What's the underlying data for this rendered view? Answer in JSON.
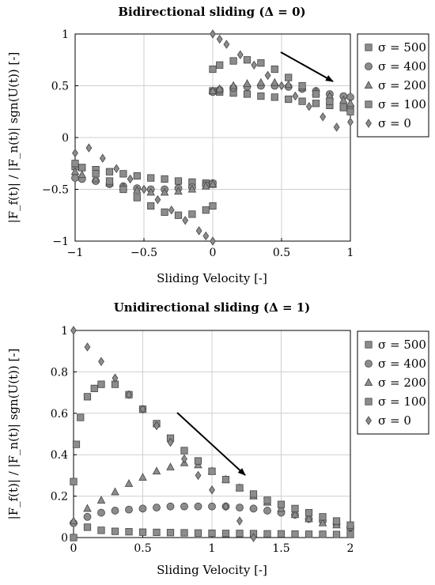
{
  "chart_data": [
    {
      "type": "scatter",
      "title": "Bidirectional sliding (Δ = 0)",
      "xlabel": "Sliding Velocity [-]",
      "ylabel": "|F_f(t)| / |F_n(t)| sgn(U(t)) [-]",
      "xlim": [
        -1,
        1
      ],
      "ylim": [
        -1,
        1
      ],
      "xticks": [
        "−1",
        "−0.5",
        "0",
        "0.5",
        "1"
      ],
      "yticks": [
        "−1",
        "−0.5",
        "0",
        "0.5",
        "1"
      ],
      "grid": true,
      "legend_position": "right",
      "annotation": "arrow pointing toward increasing σ",
      "series": [
        {
          "name": "σ = 500",
          "marker": "square",
          "x": [
            0,
            0.05,
            0.15,
            0.25,
            0.35,
            0.45,
            0.55,
            0.65,
            0.75,
            0.85,
            0.95,
            1.0
          ],
          "y": [
            0.45,
            0.44,
            0.43,
            0.42,
            0.4,
            0.39,
            0.37,
            0.35,
            0.33,
            0.31,
            0.29,
            0.28
          ]
        },
        {
          "name": "σ = 400",
          "marker": "circle",
          "x": [
            0,
            0.05,
            0.15,
            0.25,
            0.35,
            0.45,
            0.55,
            0.65,
            0.75,
            0.85,
            0.95,
            1.0
          ],
          "y": [
            0.44,
            0.46,
            0.48,
            0.49,
            0.5,
            0.5,
            0.49,
            0.47,
            0.45,
            0.42,
            0.4,
            0.39
          ]
        },
        {
          "name": "σ = 200",
          "marker": "triangle",
          "x": [
            0,
            0.05,
            0.15,
            0.25,
            0.35,
            0.45,
            0.55,
            0.65,
            0.75,
            0.85,
            0.95,
            1.0
          ],
          "y": [
            0.45,
            0.47,
            0.5,
            0.52,
            0.53,
            0.53,
            0.51,
            0.48,
            0.44,
            0.4,
            0.36,
            0.33
          ]
        },
        {
          "name": "σ = 100",
          "marker": "square",
          "x": [
            0,
            0.05,
            0.15,
            0.25,
            0.35,
            0.45,
            0.55,
            0.65,
            0.75,
            0.85,
            0.95,
            1.0
          ],
          "y": [
            0.66,
            0.7,
            0.74,
            0.75,
            0.72,
            0.66,
            0.58,
            0.5,
            0.42,
            0.35,
            0.29,
            0.25
          ]
        },
        {
          "name": "σ = 0",
          "marker": "diamond",
          "x": [
            0,
            0.05,
            0.1,
            0.2,
            0.3,
            0.4,
            0.5,
            0.6,
            0.7,
            0.8,
            0.9,
            1.0
          ],
          "y": [
            1.0,
            0.95,
            0.9,
            0.8,
            0.7,
            0.6,
            0.5,
            0.4,
            0.3,
            0.2,
            0.1,
            0.15
          ]
        }
      ]
    },
    {
      "type": "scatter",
      "title": "Unidirectional sliding (Δ = 1)",
      "xlabel": "Sliding Velocity [-]",
      "ylabel": "|F_f(t)| / |F_n(t)| sgn(U(t)) [-]",
      "xlim": [
        0,
        2
      ],
      "ylim": [
        0,
        1
      ],
      "xticks": [
        "0",
        "0.5",
        "1",
        "1.5",
        "2"
      ],
      "yticks": [
        "0",
        "0.2",
        "0.4",
        "0.6",
        "0.8",
        "1"
      ],
      "grid": true,
      "legend_position": "right",
      "annotation": "arrow pointing toward increasing σ",
      "series": [
        {
          "name": "σ = 500",
          "marker": "square",
          "x": [
            0,
            0.1,
            0.2,
            0.3,
            0.4,
            0.5,
            0.6,
            0.7,
            0.8,
            0.9,
            1.0,
            1.1,
            1.2,
            1.3,
            1.4,
            1.5,
            1.6,
            1.7,
            1.8,
            1.9,
            2.0
          ],
          "y": [
            0.0,
            0.05,
            0.035,
            0.03,
            0.028,
            0.026,
            0.025,
            0.024,
            0.023,
            0.022,
            0.021,
            0.02,
            0.02,
            0.019,
            0.018,
            0.018,
            0.017,
            0.016,
            0.016,
            0.015,
            0.015
          ]
        },
        {
          "name": "σ = 400",
          "marker": "circle",
          "x": [
            0,
            0.1,
            0.2,
            0.3,
            0.4,
            0.5,
            0.6,
            0.7,
            0.8,
            0.9,
            1.0,
            1.1,
            1.2,
            1.3,
            1.4,
            1.5,
            1.6,
            1.7,
            1.8,
            1.9,
            2.0
          ],
          "y": [
            0.07,
            0.1,
            0.12,
            0.13,
            0.135,
            0.14,
            0.145,
            0.15,
            0.15,
            0.15,
            0.15,
            0.15,
            0.145,
            0.14,
            0.13,
            0.12,
            0.11,
            0.09,
            0.08,
            0.065,
            0.05
          ]
        },
        {
          "name": "σ = 200",
          "marker": "triangle",
          "x": [
            0,
            0.1,
            0.2,
            0.3,
            0.4,
            0.5,
            0.6,
            0.7,
            0.8,
            0.9,
            1.0,
            1.1,
            1.2,
            1.3,
            1.4,
            1.5,
            1.6,
            1.7,
            1.8,
            1.9,
            2.0
          ],
          "y": [
            0.08,
            0.14,
            0.18,
            0.22,
            0.26,
            0.29,
            0.32,
            0.34,
            0.36,
            0.35,
            0.32,
            0.28,
            0.24,
            0.2,
            0.17,
            0.14,
            0.11,
            0.09,
            0.07,
            0.06,
            0.05
          ]
        },
        {
          "name": "σ = 100",
          "marker": "square",
          "x": [
            0,
            0.02,
            0.05,
            0.1,
            0.15,
            0.2,
            0.3,
            0.4,
            0.5,
            0.6,
            0.7,
            0.8,
            0.9,
            1.0,
            1.1,
            1.2,
            1.3,
            1.4,
            1.5,
            1.6,
            1.7,
            1.8,
            1.9,
            2.0
          ],
          "y": [
            0.27,
            0.45,
            0.58,
            0.68,
            0.72,
            0.74,
            0.74,
            0.69,
            0.62,
            0.55,
            0.48,
            0.42,
            0.37,
            0.32,
            0.28,
            0.24,
            0.21,
            0.18,
            0.16,
            0.14,
            0.12,
            0.1,
            0.08,
            0.06
          ]
        },
        {
          "name": "σ = 0",
          "marker": "diamond",
          "x": [
            0,
            0.1,
            0.2,
            0.3,
            0.4,
            0.5,
            0.6,
            0.7,
            0.8,
            0.9,
            1.0,
            1.1,
            1.2,
            1.3
          ],
          "y": [
            1.0,
            0.92,
            0.85,
            0.77,
            0.69,
            0.62,
            0.54,
            0.46,
            0.38,
            0.3,
            0.23,
            0.15,
            0.08,
            0.0
          ]
        }
      ]
    }
  ]
}
